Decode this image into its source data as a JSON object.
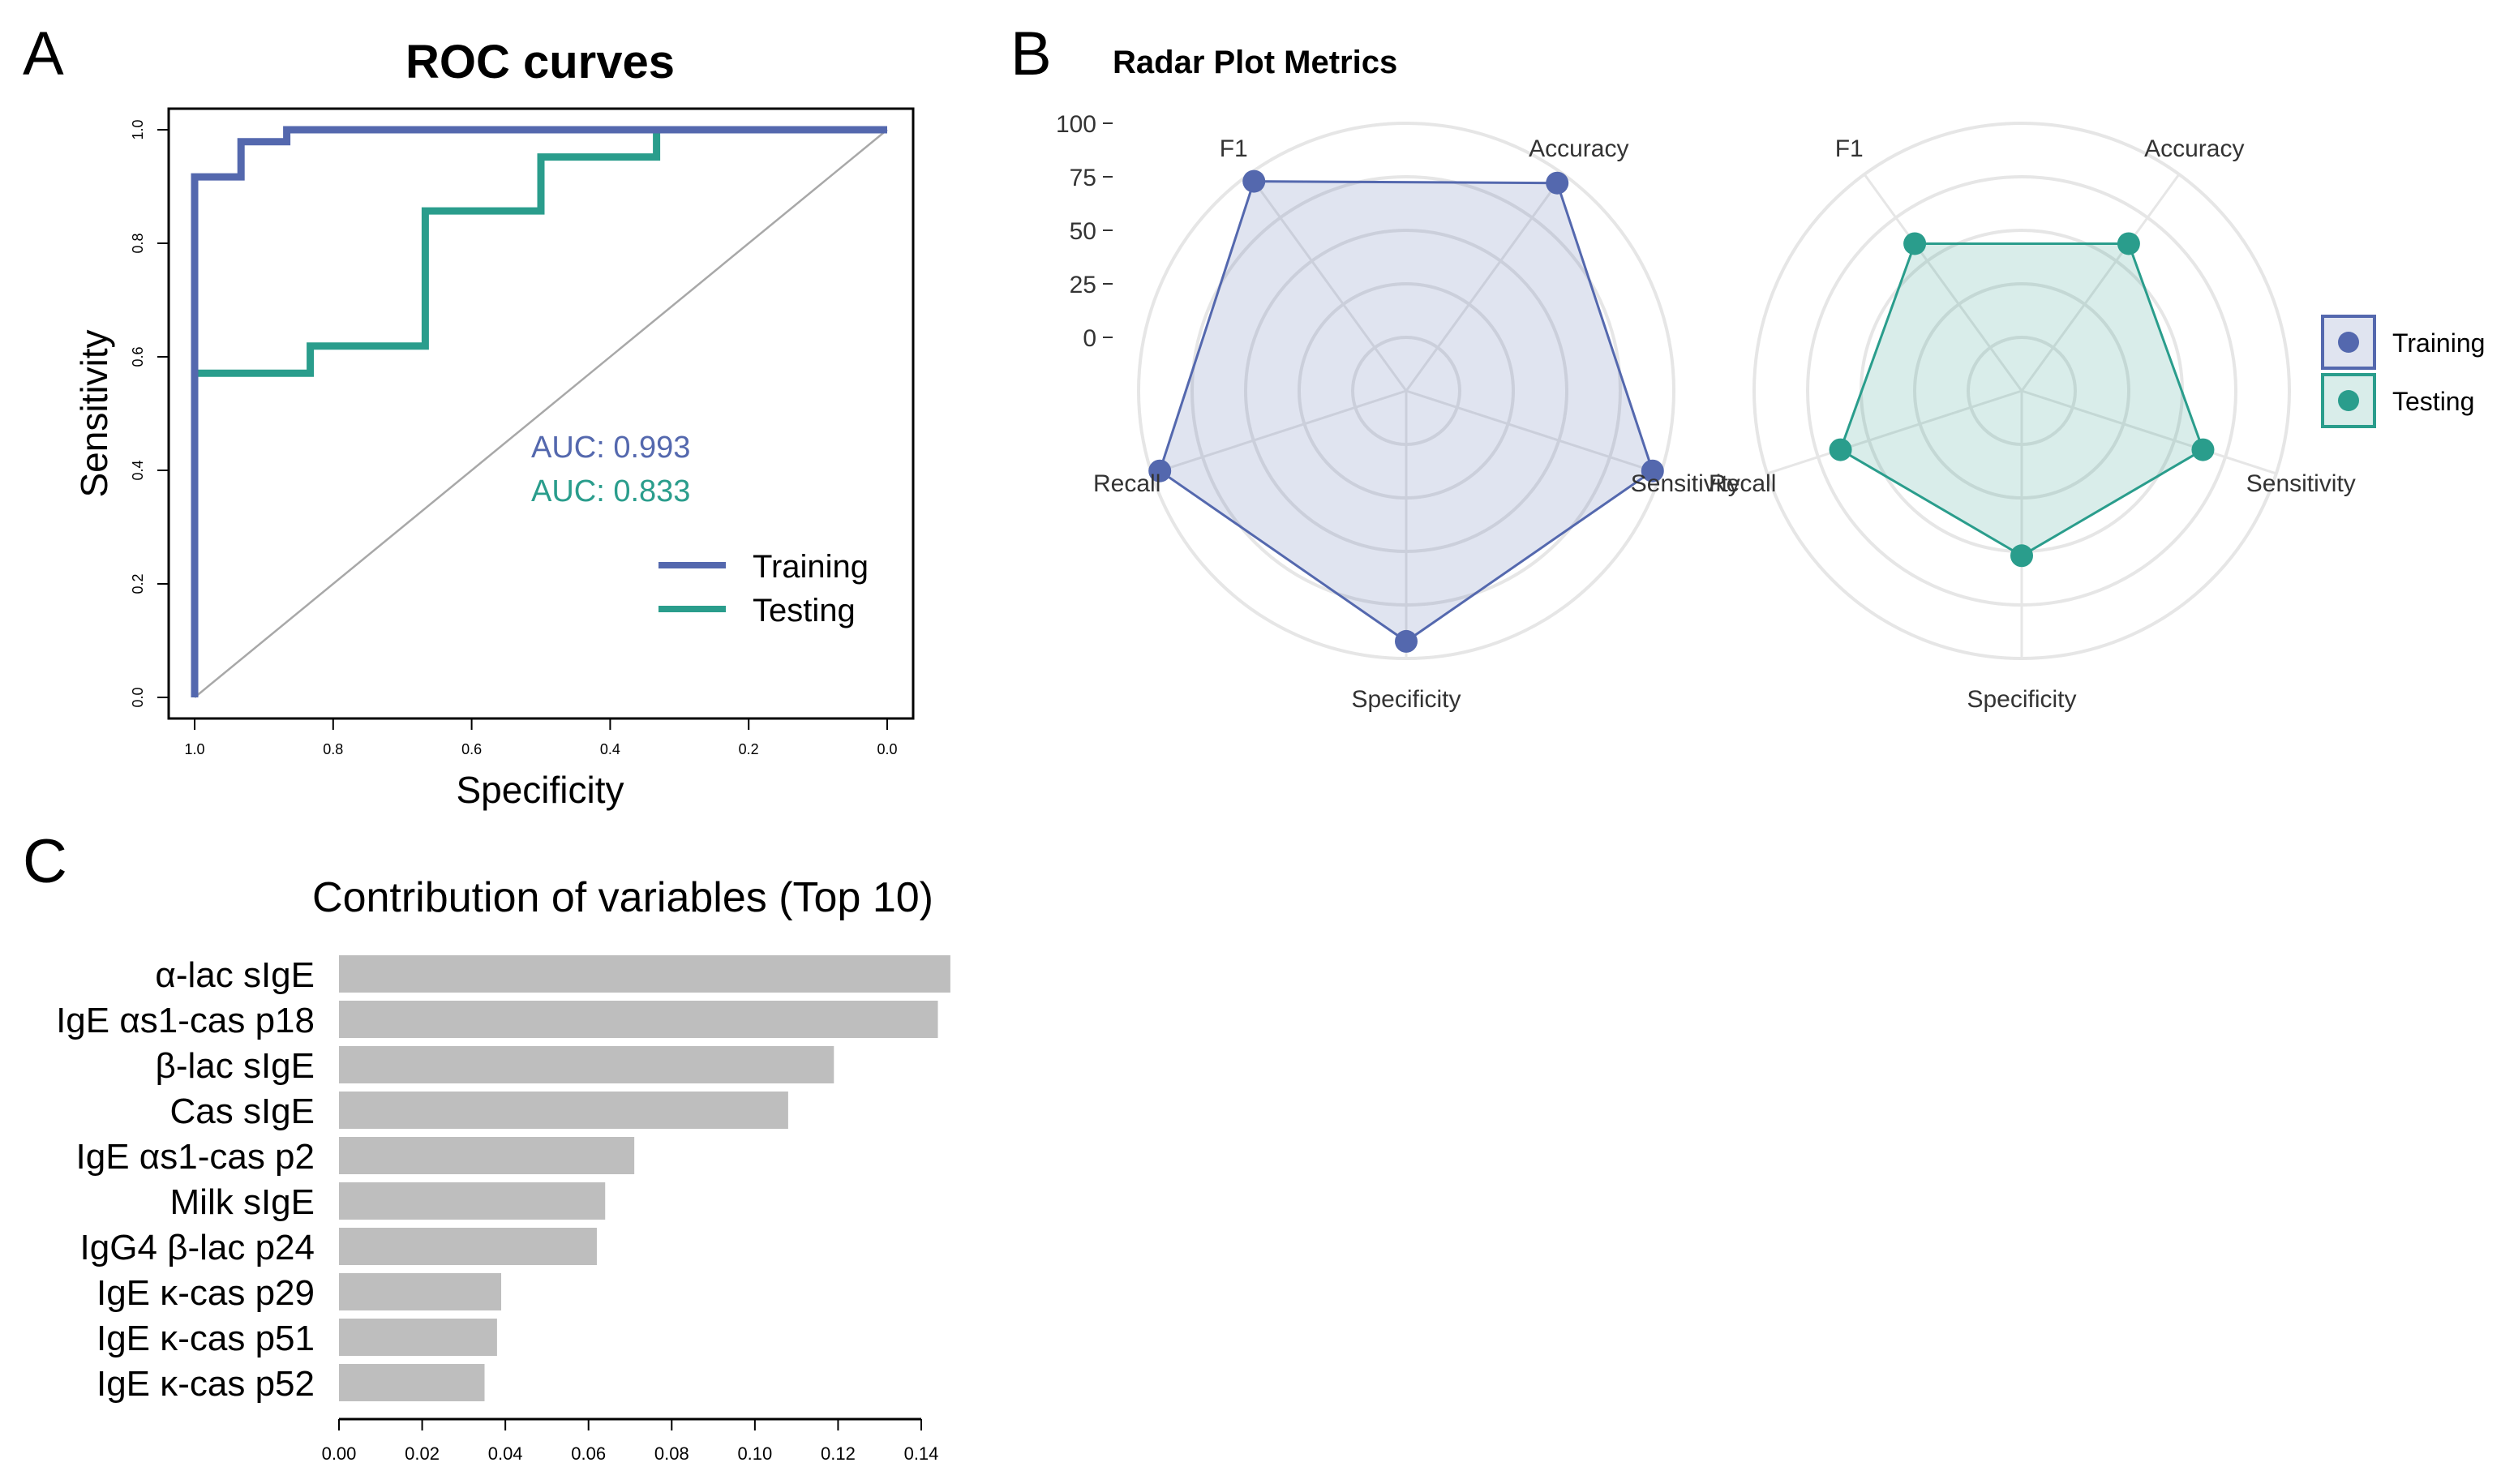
{
  "panels": {
    "a": "A",
    "b": "B",
    "c": "C"
  },
  "colors": {
    "training": "#5468AE",
    "testing": "#2A9D8C",
    "bar": "#BEBEBE",
    "ring": "#E6E6E6",
    "diag": "#A8A8A8"
  },
  "chart_data": [
    {
      "type": "line",
      "title": "ROC curves",
      "xlabel": "Specificity",
      "ylabel": "Sensitivity",
      "xlim": [
        1.0,
        0.0
      ],
      "ylim": [
        0.0,
        1.0
      ],
      "xticks": [
        "1.0",
        "0.8",
        "0.6",
        "0.4",
        "0.2",
        "0.0"
      ],
      "yticks": [
        "0.0",
        "0.2",
        "0.4",
        "0.6",
        "0.8",
        "1.0"
      ],
      "auc_labels": [
        "AUC: 0.993",
        "AUC: 0.833"
      ],
      "legend": [
        "Training",
        "Testing"
      ],
      "series": [
        {
          "name": "Training",
          "x": [
            1.0,
            1.0,
            0.933,
            0.933,
            0.867,
            0.867,
            0.0
          ],
          "y": [
            0.0,
            0.917,
            0.917,
            0.979,
            0.979,
            1.0,
            1.0
          ]
        },
        {
          "name": "Testing",
          "x": [
            1.0,
            1.0,
            0.833,
            0.833,
            0.667,
            0.667,
            0.5,
            0.5,
            0.333,
            0.333,
            0.0
          ],
          "y": [
            0.0,
            0.571,
            0.571,
            0.619,
            0.619,
            0.857,
            0.857,
            0.952,
            0.952,
            1.0,
            1.0
          ]
        }
      ]
    },
    {
      "type": "radar",
      "title": "Radar Plot Metrics",
      "axes": [
        "Accuracy",
        "Sensitivity",
        "Specificity",
        "Recall",
        "F1"
      ],
      "rticks": [
        "100",
        "75",
        "50",
        "25",
        "0"
      ],
      "rlim": [
        -25,
        100
      ],
      "legend": [
        "Training",
        "Testing"
      ],
      "series": [
        {
          "name": "Training",
          "values": [
            95,
            96,
            92,
            96,
            96
          ]
        },
        {
          "name": "Testing",
          "values": [
            60,
            64,
            52,
            64,
            60
          ]
        }
      ]
    },
    {
      "type": "bar",
      "orientation": "horizontal",
      "title": "Contribution of variables (Top 10)",
      "categories": [
        "α-lac sIgE",
        "IgE αs1-cas p18",
        "β-lac sIgE",
        "Cas sIgE",
        "IgE αs1-cas p2",
        "Milk sIgE",
        "IgG4 β-lac p24",
        "IgE κ-cas p29",
        "IgE κ-cas p51",
        "IgE κ-cas p52"
      ],
      "values": [
        0.147,
        0.144,
        0.119,
        0.108,
        0.071,
        0.064,
        0.062,
        0.039,
        0.038,
        0.035
      ],
      "xticks": [
        "0.00",
        "0.02",
        "0.04",
        "0.06",
        "0.08",
        "0.10",
        "0.12",
        "0.14"
      ],
      "xlim": [
        0,
        0.14
      ]
    }
  ]
}
